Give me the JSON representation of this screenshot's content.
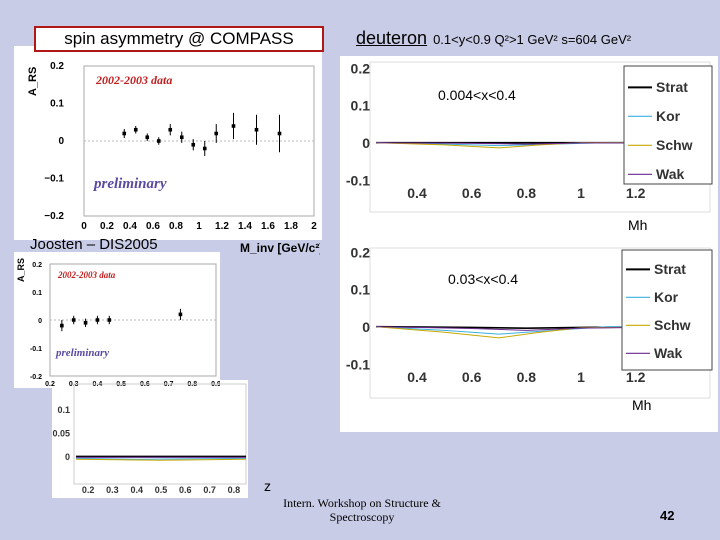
{
  "header": {
    "title": "spin asymmetry @ COMPASS",
    "target": "deuteron",
    "kinematics": "0.1<y<0.9  Q²>1 GeV²  s=604 GeV²"
  },
  "credit": "Joosten – DIS2005",
  "footer": {
    "conference_line1": "Intern. Workshop on Structure &",
    "conference_line2": "Spectroscopy",
    "page_number": "42"
  },
  "chart_data": [
    {
      "type": "scatter",
      "id": "mass-data",
      "title": "2002-2003 data",
      "annotation": "preliminary",
      "ylabel": "A_RS",
      "xlabel": "M_inv [GeV/c²]",
      "ylim": [
        -0.2,
        0.2
      ],
      "yticks": [
        "0.2",
        "0.1",
        "0",
        "−0.1",
        "−0.2"
      ],
      "xticks": [
        "0",
        "0.2",
        "0.4",
        "0.6",
        "0.8",
        "1",
        "1.2",
        "1.4",
        "1.6",
        "1.8",
        "2"
      ],
      "points": [
        {
          "x": 0.35,
          "y": 0.02,
          "err": 0.012
        },
        {
          "x": 0.45,
          "y": 0.03,
          "err": 0.01
        },
        {
          "x": 0.55,
          "y": 0.01,
          "err": 0.01
        },
        {
          "x": 0.65,
          "y": 0.0,
          "err": 0.01
        },
        {
          "x": 0.75,
          "y": 0.03,
          "err": 0.015
        },
        {
          "x": 0.85,
          "y": 0.01,
          "err": 0.015
        },
        {
          "x": 0.95,
          "y": -0.01,
          "err": 0.015
        },
        {
          "x": 1.05,
          "y": -0.02,
          "err": 0.02
        },
        {
          "x": 1.15,
          "y": 0.02,
          "err": 0.025
        },
        {
          "x": 1.3,
          "y": 0.04,
          "err": 0.035
        },
        {
          "x": 1.5,
          "y": 0.03,
          "err": 0.04
        },
        {
          "x": 1.7,
          "y": 0.02,
          "err": 0.05
        }
      ]
    },
    {
      "type": "scatter",
      "id": "z-data",
      "title": "2002-2003 data",
      "annotation": "preliminary",
      "ylabel": "A_RS",
      "xlabel": "z",
      "ylim": [
        -0.2,
        0.2
      ],
      "yticks": [
        "0.2",
        "0.1",
        "0",
        "-0.1",
        "-0.2"
      ],
      "xticks": [
        "0.2",
        "0.3",
        "0.4",
        "0.5",
        "0.6",
        "0.7",
        "0.8",
        "0.9"
      ],
      "points": [
        {
          "x": 0.25,
          "y": -0.02,
          "err": 0.02
        },
        {
          "x": 0.3,
          "y": 0.0,
          "err": 0.015
        },
        {
          "x": 0.35,
          "y": -0.01,
          "err": 0.015
        },
        {
          "x": 0.4,
          "y": 0.0,
          "err": 0.015
        },
        {
          "x": 0.45,
          "y": 0.0,
          "err": 0.015
        },
        {
          "x": 0.75,
          "y": 0.02,
          "err": 0.02
        }
      ]
    },
    {
      "type": "line",
      "id": "mass-models-1",
      "annotation": "0.004<x<0.4",
      "xlabel": "Mh",
      "ylim": [
        -0.1,
        0.2
      ],
      "xlim": [
        0.25,
        1.45
      ],
      "yticks": [
        "0.2",
        "0.1",
        "0",
        "-0.1"
      ],
      "xticks": [
        "0.4",
        "0.6",
        "0.8",
        "1",
        "1.2"
      ],
      "series": [
        {
          "name": "Strat",
          "color": "#000000",
          "x": [
            0.25,
            0.6,
            0.8,
            1.0,
            1.45
          ],
          "y": [
            0,
            0,
            0,
            0,
            0
          ]
        },
        {
          "name": "Kor",
          "color": "#3ab0e0",
          "x": [
            0.25,
            0.5,
            0.7,
            0.9,
            1.1,
            1.45
          ],
          "y": [
            0,
            -0.004,
            -0.008,
            -0.004,
            0,
            0
          ]
        },
        {
          "name": "Schw",
          "color": "#c8a800",
          "x": [
            0.25,
            0.5,
            0.7,
            0.85,
            1.0,
            1.45
          ],
          "y": [
            0,
            -0.006,
            -0.014,
            -0.006,
            0,
            0
          ]
        },
        {
          "name": "Wak",
          "color": "#6a2a90",
          "x": [
            0.25,
            0.6,
            0.8,
            1.0,
            1.45
          ],
          "y": [
            0,
            -0.002,
            -0.004,
            -0.001,
            0
          ]
        }
      ]
    },
    {
      "type": "line",
      "id": "mass-models-2",
      "annotation": "0.03<x<0.4",
      "xlabel": "Mh",
      "ylim": [
        -0.1,
        0.2
      ],
      "xlim": [
        0.25,
        1.45
      ],
      "yticks": [
        "0.2",
        "0.1",
        "0",
        "-0.1"
      ],
      "xticks": [
        "0.4",
        "0.6",
        "0.8",
        "1",
        "1.2"
      ],
      "series": [
        {
          "name": "Strat",
          "color": "#000000",
          "x": [
            0.25,
            0.6,
            0.8,
            1.0,
            1.45
          ],
          "y": [
            0,
            -0.002,
            -0.004,
            -0.002,
            0
          ]
        },
        {
          "name": "Kor",
          "color": "#3ab0e0",
          "x": [
            0.25,
            0.5,
            0.7,
            0.9,
            1.1,
            1.45
          ],
          "y": [
            0,
            -0.01,
            -0.02,
            -0.01,
            0,
            0
          ]
        },
        {
          "name": "Schw",
          "color": "#c8a800",
          "x": [
            0.25,
            0.5,
            0.7,
            0.85,
            1.0,
            1.45
          ],
          "y": [
            0,
            -0.015,
            -0.03,
            -0.015,
            -0.003,
            0
          ]
        },
        {
          "name": "Wak",
          "color": "#6a2a90",
          "x": [
            0.25,
            0.6,
            0.8,
            1.0,
            1.45
          ],
          "y": [
            0,
            -0.005,
            -0.01,
            -0.004,
            0
          ]
        }
      ]
    },
    {
      "type": "line",
      "id": "z-models",
      "xlabel": "z",
      "ylim": [
        -0.05,
        0.12
      ],
      "xlim": [
        0.15,
        0.85
      ],
      "yticks": [
        "0.1",
        "0.05",
        "0"
      ],
      "xticks": [
        "0.2",
        "0.3",
        "0.4",
        "0.5",
        "0.6",
        "0.7",
        "0.8"
      ],
      "series": [
        {
          "name": "Strat",
          "color": "#000000",
          "x": [
            0.15,
            0.85
          ],
          "y": [
            0,
            0
          ]
        },
        {
          "name": "Kor",
          "color": "#3ab0e0",
          "x": [
            0.15,
            0.4,
            0.85
          ],
          "y": [
            -0.004,
            -0.006,
            -0.004
          ]
        },
        {
          "name": "Schw",
          "color": "#c8a800",
          "x": [
            0.15,
            0.5,
            0.85
          ],
          "y": [
            -0.006,
            -0.008,
            -0.006
          ]
        },
        {
          "name": "Wak",
          "color": "#6a2a90",
          "x": [
            0.15,
            0.85
          ],
          "y": [
            -0.002,
            -0.002
          ]
        }
      ]
    }
  ]
}
